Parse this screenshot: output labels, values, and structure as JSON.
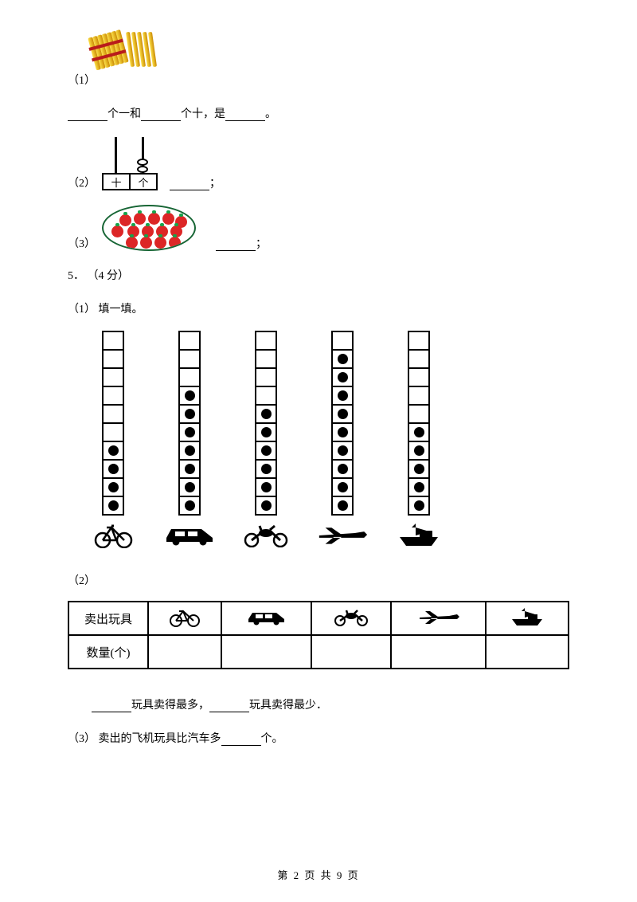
{
  "q1": {
    "label": "（1）",
    "text_parts": [
      "个一和",
      "个十，是",
      "。"
    ]
  },
  "q2": {
    "label": "（2）",
    "abacus_labels": [
      "十",
      "个"
    ],
    "suffix": "；"
  },
  "q3": {
    "label": "（3）",
    "suffix": "；"
  },
  "q5": {
    "number": "5．",
    "points": "（4 分）",
    "sub1": "（1） 填一填。",
    "sub2": "（2）",
    "sub3_pre": "（3） 卖出的飞机玩具比汽车多",
    "sub3_post": "个。"
  },
  "chart": {
    "total_cells": 10,
    "columns": [
      {
        "name": "bicycle",
        "filled": 4
      },
      {
        "name": "car",
        "filled": 7
      },
      {
        "name": "motorcycle",
        "filled": 6
      },
      {
        "name": "airplane",
        "filled": 9
      },
      {
        "name": "ship",
        "filled": 5
      }
    ]
  },
  "table": {
    "row1_header": "卖出玩具",
    "row2_header": "数量(个)"
  },
  "fill_line": {
    "part1": "玩具卖得最多，",
    "part2": "玩具卖得最少．"
  },
  "footer": {
    "text": "第 2 页 共 9 页"
  }
}
